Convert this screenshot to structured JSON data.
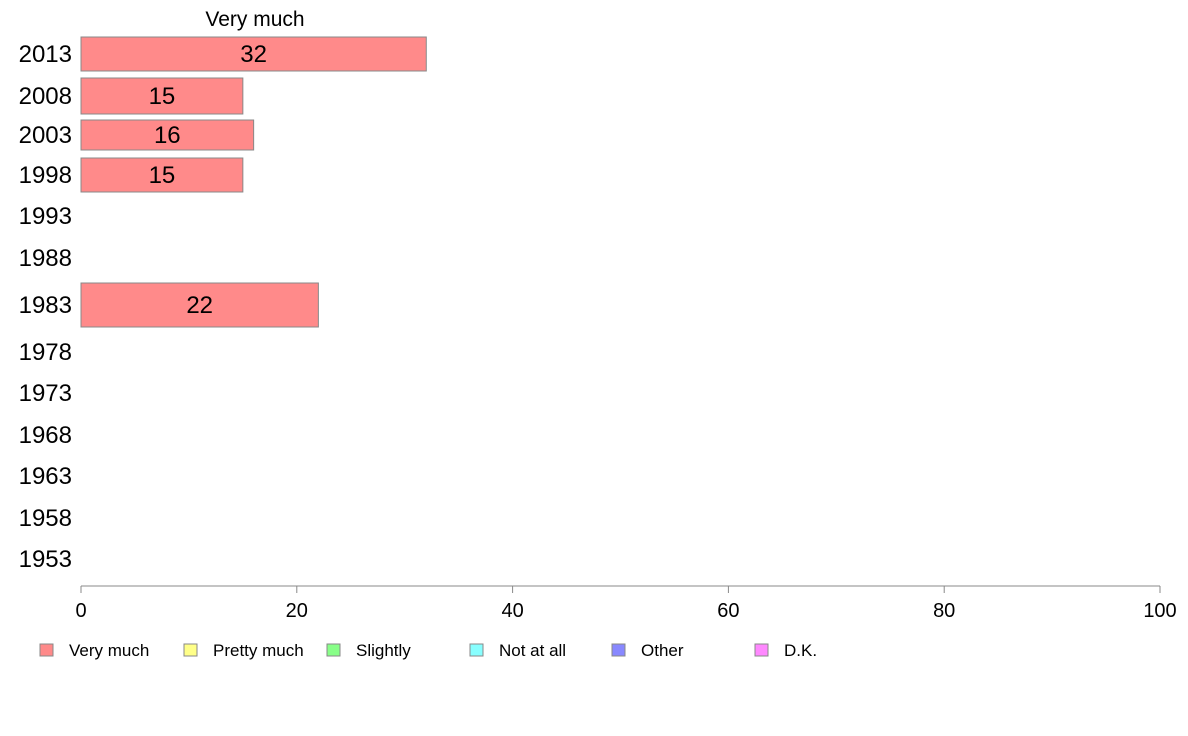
{
  "chart_data": {
    "type": "bar",
    "orientation": "horizontal",
    "categories": [
      "2013",
      "2008",
      "2003",
      "1998",
      "1993",
      "1988",
      "1983",
      "1978",
      "1973",
      "1968",
      "1963",
      "1958",
      "1953"
    ],
    "series": [
      {
        "name": "Very much",
        "values": [
          32,
          15,
          16,
          15,
          null,
          null,
          22,
          null,
          null,
          null,
          null,
          null,
          null
        ]
      }
    ],
    "data_labels": [
      "32",
      "15",
      "16",
      "15",
      "",
      "",
      "22",
      "",
      "",
      "",
      "",
      "",
      ""
    ],
    "x_ticks": [
      "0",
      "20",
      "40",
      "60",
      "80",
      "100"
    ],
    "xlim": [
      0,
      100
    ],
    "grid": false,
    "legend": {
      "placement": "bottom",
      "entries": [
        {
          "label": "Very much",
          "color": "#ff8a8a"
        },
        {
          "label": "Pretty much",
          "color": "#ffff88"
        },
        {
          "label": "Slightly",
          "color": "#88ff88"
        },
        {
          "label": "Not at all",
          "color": "#88ffff"
        },
        {
          "label": "Other",
          "color": "#8888ff"
        },
        {
          "label": "D.K.",
          "color": "#ff88ff"
        }
      ]
    },
    "colors": {
      "bar_fill": "#ff8a8a",
      "bar_stroke": "#888888",
      "axis": "#888888"
    }
  }
}
